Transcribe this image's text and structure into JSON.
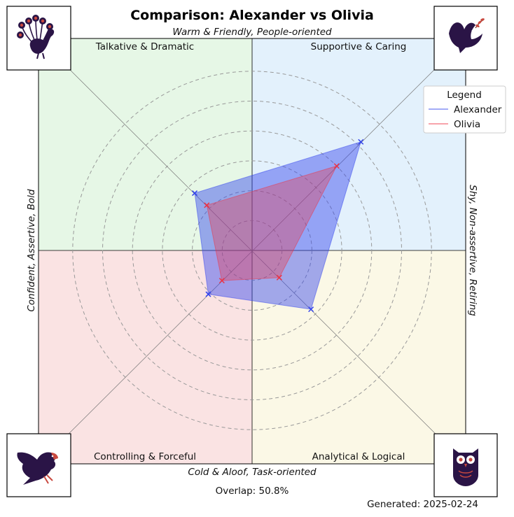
{
  "chart_data": {
    "type": "radar",
    "title": "Comparison: Alexander vs Olivia",
    "axes": {
      "top": "Warm & Friendly, People-oriented",
      "bottom": "Cold & Aloof, Task-oriented",
      "left": "Confident, Assertive, Bold",
      "right": "Shy, Non-assertive, Retiring"
    },
    "quadrants": {
      "top_left": {
        "label": "Talkative & Dramatic",
        "color": "#e6f7e6"
      },
      "top_right": {
        "label": "Supportive & Caring",
        "color": "#e3f1fc"
      },
      "bottom_left": {
        "label": "Controlling & Forceful",
        "color": "#fae3e3"
      },
      "bottom_right": {
        "label": "Analytical & Logical",
        "color": "#fbf8e6"
      }
    },
    "directions": [
      "Supportive & Caring",
      "Talkative & Dramatic",
      "Controlling & Forceful",
      "Analytical & Logical"
    ],
    "max_value": 10,
    "rings": [
      1.4,
      2.8,
      4.2,
      5.6,
      7.0,
      8.4
    ],
    "series": [
      {
        "name": "Alexander",
        "color": "#3344ee",
        "values": [
          7.2,
          3.8,
          2.9,
          3.9
        ]
      },
      {
        "name": "Olivia",
        "color": "#ee3344",
        "values": [
          5.6,
          3.0,
          2.0,
          1.8
        ]
      }
    ],
    "legend": {
      "title": "Legend",
      "position": "top-right"
    },
    "overlap_text": "Overlap: 50.8%",
    "generated_text": "Generated: 2025-02-24"
  },
  "icons": {
    "top_left": "peacock-icon",
    "top_right": "dove-icon",
    "bottom_left": "eagle-icon",
    "bottom_right": "owl-icon"
  }
}
